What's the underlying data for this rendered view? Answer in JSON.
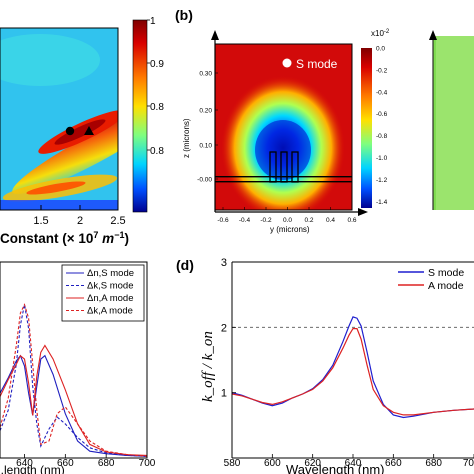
{
  "chart_data": [
    {
      "panel": "a",
      "type": "heatmap",
      "xlabel": "Constant (× 10",
      "xlabel_exp": "7",
      "xlabel_unit": " m",
      "xlabel_unit_exp": "−1",
      "xlabel_close": ")",
      "x_ticks": [
        "1.5",
        "2",
        "2.5"
      ],
      "colorbar_ticks": [
        "1",
        "0.9",
        "0.8",
        "0.8"
      ],
      "colormap": "jet",
      "markers": [
        {
          "shape": "circle"
        },
        {
          "shape": "triangle"
        }
      ]
    },
    {
      "panel": "b",
      "type": "heatmap",
      "panel_label": "(b)",
      "legend": "S mode",
      "xlabel": "y (microns)",
      "ylabel": "z (microns)",
      "x_ticks": [
        "-0.6",
        "-0.4",
        "-0.2",
        "0.0",
        "0.2",
        "0.4",
        "0.6"
      ],
      "y_ticks": [
        "0.30",
        "0.20",
        "0.10",
        "-0.00",
        "-0.10",
        "-0.20"
      ],
      "colorbar_exp": "x10",
      "colorbar_exp_power": "-2",
      "colorbar_ticks": [
        "0.0",
        "-0.2",
        "-0.4",
        "-0.6",
        "-0.8",
        "-1.0",
        "-1.2",
        "-1.4"
      ],
      "colormap": "jet",
      "neighbor_colors": [
        "#9be46d",
        "#7fdc50"
      ]
    },
    {
      "panel": "c",
      "type": "line",
      "x_ticks": [
        "640",
        "660",
        "680",
        "700"
      ],
      "xlim": [
        628,
        700
      ],
      "ylim": [
        0,
        1.15
      ],
      "xlabel_fragment": "...length (nm)",
      "legend": [
        {
          "label": "Δn,S mode",
          "color": "#1f1fbf",
          "dash": false
        },
        {
          "label": "Δk,S mode",
          "color": "#1f1fbf",
          "dash": true
        },
        {
          "label": "Δn,A mode",
          "color": "#dd2222",
          "dash": false
        },
        {
          "label": "Δk,A mode",
          "color": "#dd2222",
          "dash": true
        }
      ],
      "series": [
        {
          "name": "Δn,S mode",
          "x": [
            628,
            632,
            636,
            638,
            640,
            642,
            644,
            646,
            648,
            650,
            654,
            660,
            666,
            672,
            680,
            690,
            700
          ],
          "y": [
            0.38,
            0.47,
            0.57,
            0.6,
            0.54,
            0.38,
            0.25,
            0.42,
            0.58,
            0.6,
            0.49,
            0.26,
            0.1,
            0.04,
            0.025,
            0.015,
            0.01
          ]
        },
        {
          "name": "Δk,S mode",
          "x": [
            628,
            632,
            636,
            638,
            640,
            642,
            644,
            646,
            648,
            652,
            656,
            660,
            666,
            672,
            680,
            690,
            700
          ],
          "y": [
            0.16,
            0.28,
            0.55,
            0.78,
            0.9,
            0.76,
            0.42,
            0.2,
            0.07,
            0.17,
            0.24,
            0.2,
            0.12,
            0.06,
            0.03,
            0.015,
            0.01
          ]
        },
        {
          "name": "Δn,A mode",
          "x": [
            628,
            632,
            636,
            638,
            640,
            642,
            644,
            646,
            648,
            650,
            654,
            660,
            666,
            672,
            680,
            690,
            700
          ],
          "y": [
            0.36,
            0.46,
            0.55,
            0.6,
            0.58,
            0.44,
            0.25,
            0.48,
            0.62,
            0.66,
            0.58,
            0.4,
            0.2,
            0.08,
            0.035,
            0.02,
            0.015
          ]
        },
        {
          "name": "Δk,A mode",
          "x": [
            628,
            632,
            636,
            638,
            640,
            642,
            644,
            646,
            648,
            652,
            656,
            660,
            666,
            672,
            680,
            690,
            700
          ],
          "y": [
            0.18,
            0.35,
            0.66,
            0.85,
            0.9,
            0.82,
            0.55,
            0.28,
            0.08,
            0.1,
            0.26,
            0.3,
            0.2,
            0.1,
            0.04,
            0.02,
            0.01
          ]
        }
      ]
    },
    {
      "panel": "d",
      "type": "line",
      "panel_label": "(d)",
      "ylabel": "k_off / k_on",
      "y_ticks": [
        "1",
        "2",
        "3"
      ],
      "x_ticks": [
        "580",
        "600",
        "620",
        "640",
        "660",
        "680",
        "70"
      ],
      "xlim": [
        580,
        700
      ],
      "ylim": [
        0,
        3
      ],
      "reference_line": 2,
      "xlabel_fragment": "Wavelength (nm)",
      "legend": [
        {
          "label": "S mode",
          "color": "#1f1fcf"
        },
        {
          "label": "A mode",
          "color": "#dd2222"
        }
      ],
      "series": [
        {
          "name": "S mode",
          "x": [
            580,
            585,
            590,
            595,
            600,
            605,
            610,
            615,
            620,
            625,
            630,
            635,
            638,
            640,
            642,
            644,
            647,
            650,
            655,
            660,
            665,
            670,
            680,
            690,
            700
          ],
          "y": [
            1.0,
            0.96,
            0.9,
            0.84,
            0.8,
            0.84,
            0.92,
            0.98,
            1.06,
            1.2,
            1.42,
            1.78,
            2.02,
            2.16,
            2.14,
            2.02,
            1.62,
            1.18,
            0.82,
            0.66,
            0.62,
            0.64,
            0.7,
            0.73,
            0.75
          ]
        },
        {
          "name": "A mode",
          "x": [
            580,
            585,
            590,
            595,
            600,
            605,
            610,
            615,
            620,
            625,
            630,
            635,
            638,
            640,
            642,
            644,
            647,
            650,
            655,
            660,
            665,
            670,
            680,
            690,
            700
          ],
          "y": [
            0.98,
            0.95,
            0.9,
            0.85,
            0.82,
            0.86,
            0.92,
            0.98,
            1.05,
            1.18,
            1.38,
            1.68,
            1.88,
            1.98,
            1.98,
            1.82,
            1.42,
            1.05,
            0.8,
            0.7,
            0.66,
            0.66,
            0.7,
            0.73,
            0.75
          ]
        }
      ]
    }
  ]
}
